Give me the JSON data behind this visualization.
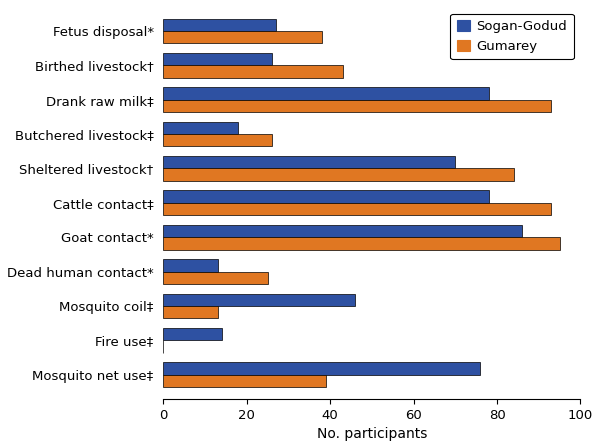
{
  "categories": [
    "Mosquito net use‡",
    "Fire use‡",
    "Mosquito coil‡",
    "Dead human contact*",
    "Goat contact*",
    "Cattle contact‡",
    "Sheltered livestock†",
    "Butchered livestock‡",
    "Drank raw milk‡",
    "Birthed livestock†",
    "Fetus disposal*"
  ],
  "sogan_godud": [
    76,
    14,
    46,
    13,
    86,
    78,
    70,
    18,
    78,
    26,
    27
  ],
  "gumarey": [
    39,
    0,
    13,
    25,
    95,
    93,
    84,
    26,
    93,
    43,
    38
  ],
  "color_sogan": "#2e51a2",
  "color_gumarey": "#e07722",
  "xlabel": "No. participants",
  "xlim": [
    0,
    100
  ],
  "xticks": [
    0,
    20,
    40,
    60,
    80,
    100
  ],
  "legend_sogan": "Sogan-Godud",
  "legend_gumarey": "Gumarey",
  "bar_height": 0.36,
  "figsize": [
    6.0,
    4.48
  ],
  "dpi": 100
}
